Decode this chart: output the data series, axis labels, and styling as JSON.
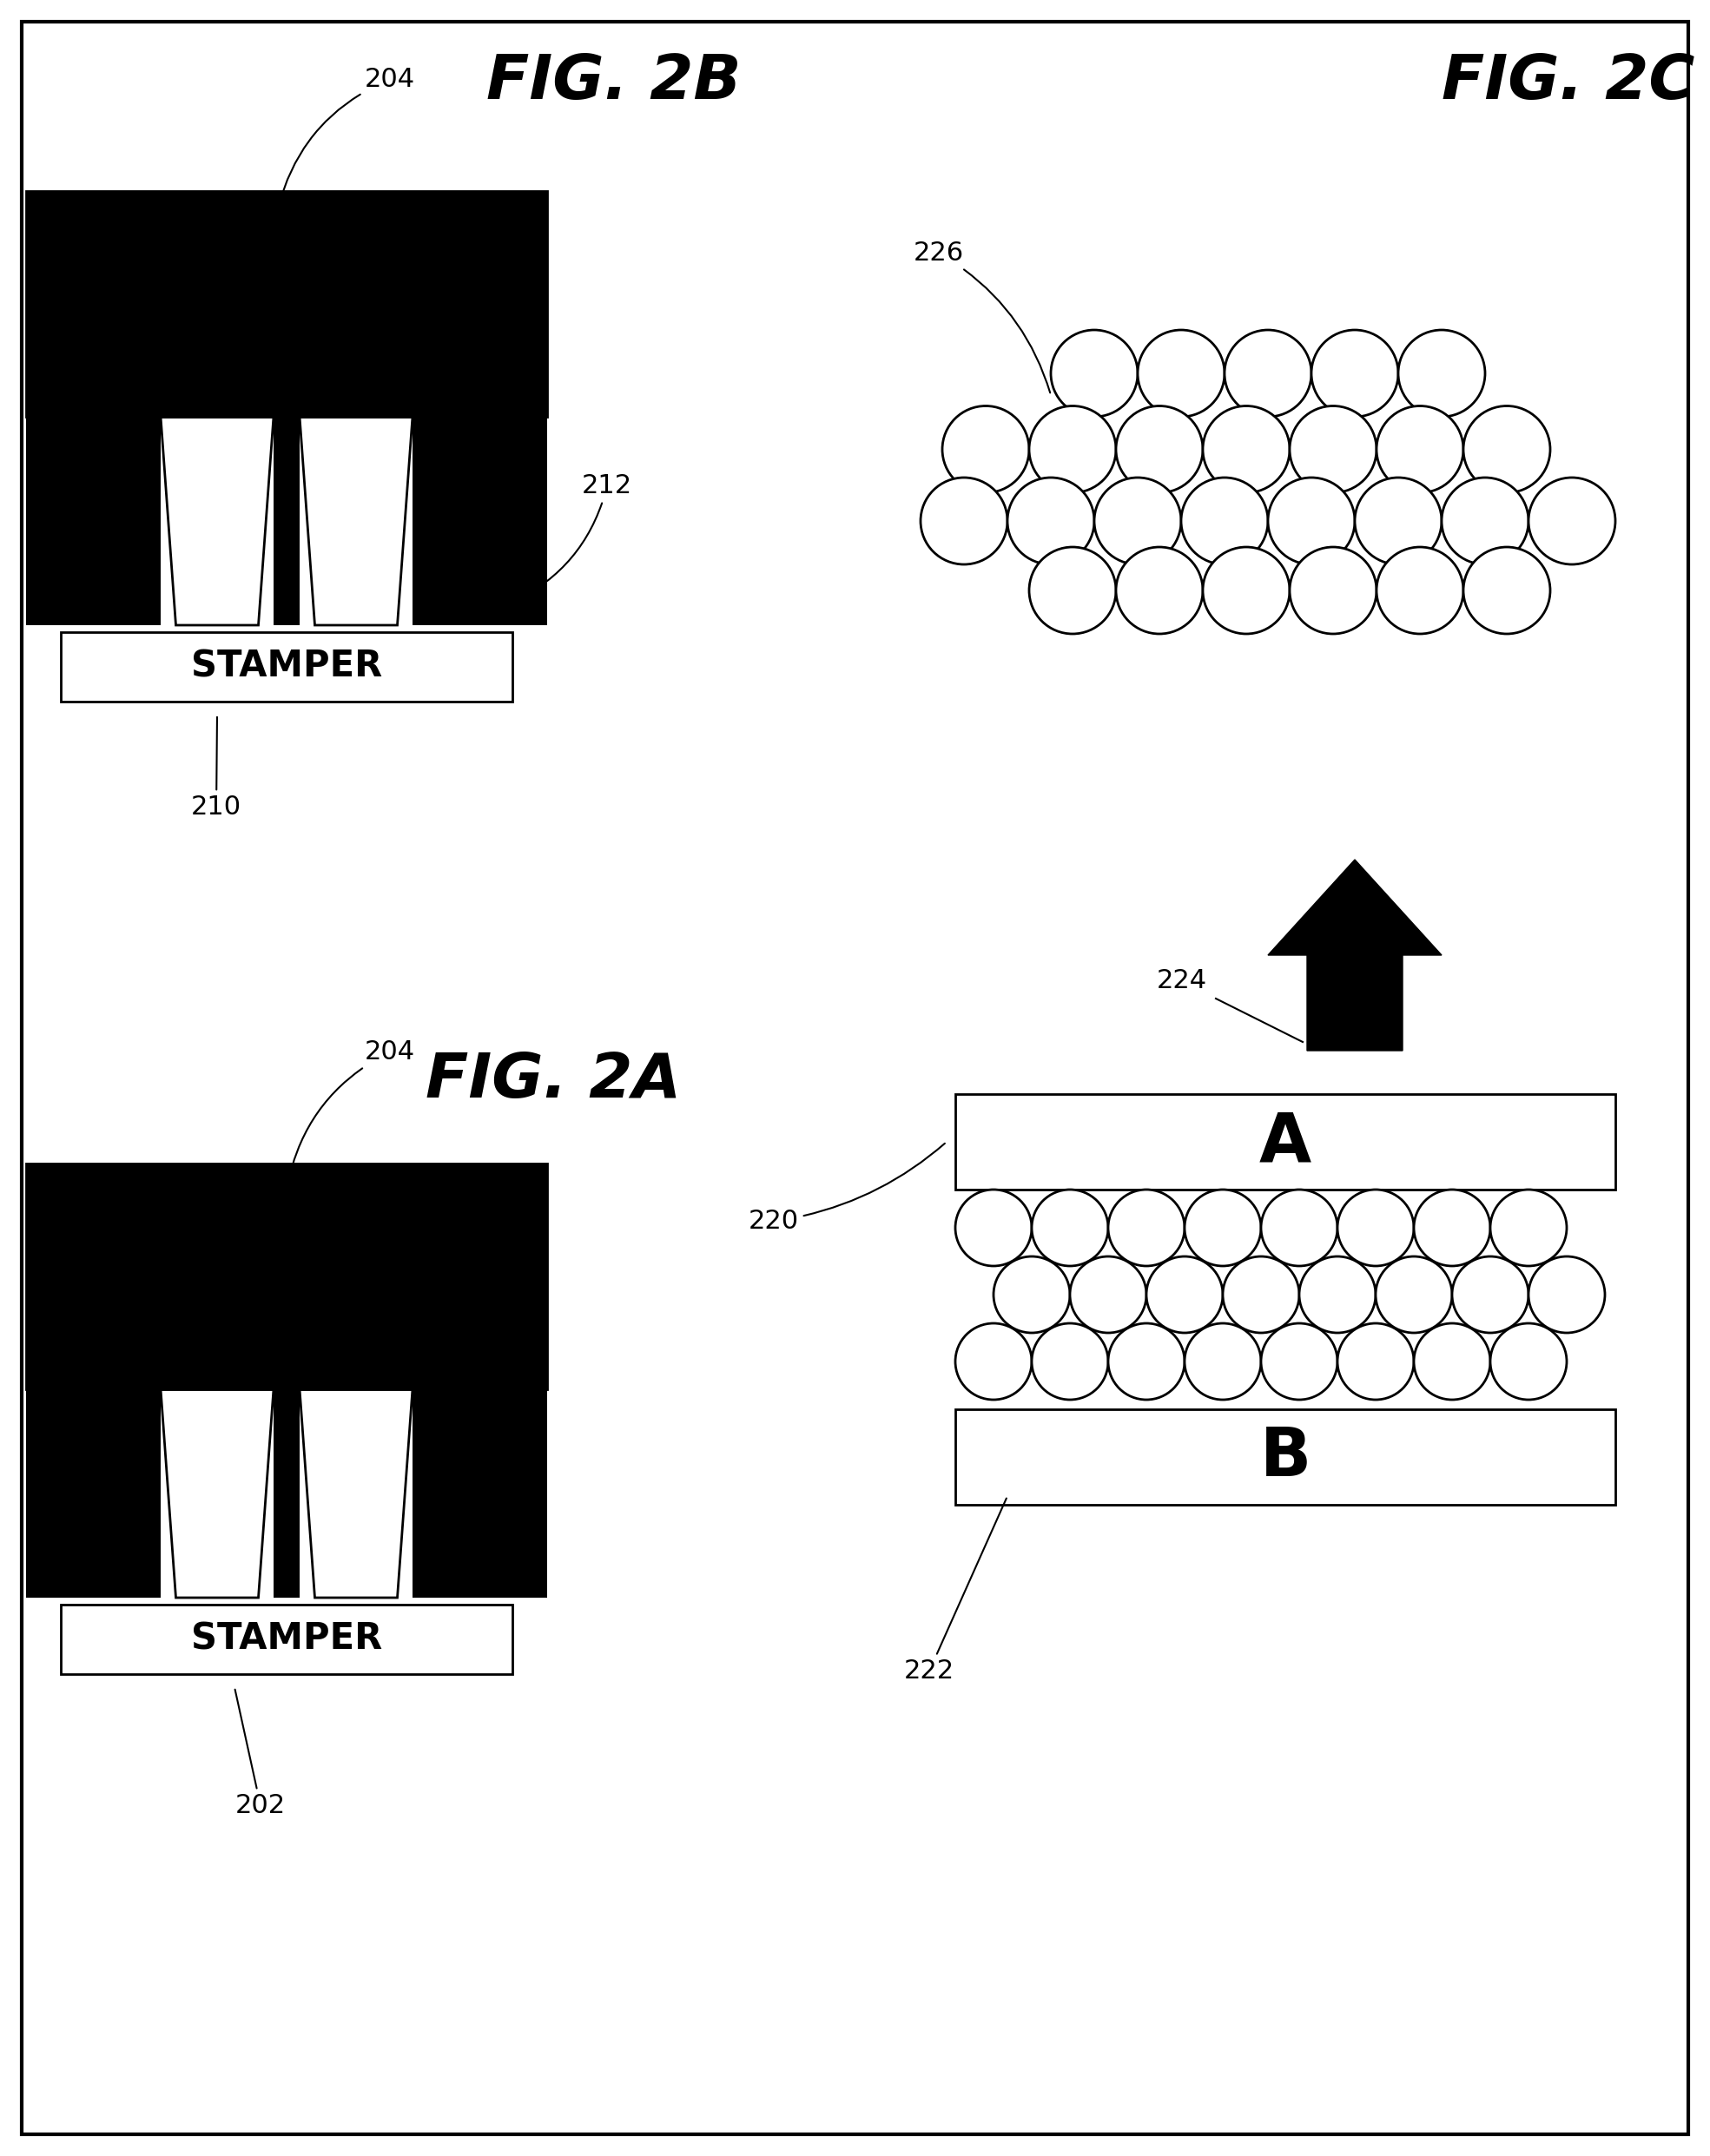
{
  "bg_color": "#ffffff",
  "fig_width": 19.69,
  "fig_height": 24.83,
  "fig2a_label": "FIG. 2A",
  "fig2b_label": "FIG. 2B",
  "fig2c_label": "FIG. 2C",
  "stamper_text": "STAMPER",
  "A_text": "A",
  "B_text": "B",
  "ref_202": "202",
  "ref_204": "204",
  "ref_210": "210",
  "ref_212": "212",
  "ref_220": "220",
  "ref_222": "222",
  "ref_224": "224",
  "ref_226": "226",
  "lw_main": 2.0,
  "lw_border": 3.0,
  "fontsize_ref": 22,
  "fontsize_label": 52,
  "fontsize_stamper": 30,
  "fontsize_AB": 56
}
